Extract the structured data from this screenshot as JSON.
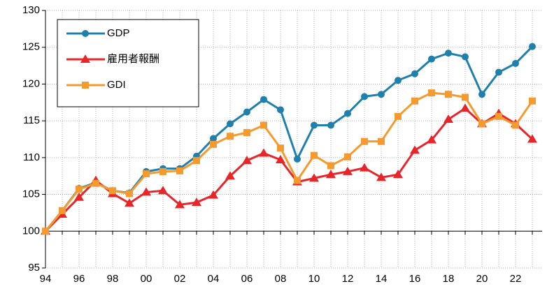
{
  "chart_data": {
    "type": "line",
    "categories": [
      "94",
      null,
      "96",
      null,
      "98",
      null,
      "00",
      null,
      "02",
      null,
      "04",
      null,
      "06",
      null,
      "08",
      null,
      "10",
      null,
      "12",
      null,
      "14",
      null,
      "16",
      null,
      "18",
      null,
      "20",
      null,
      "22",
      null
    ],
    "series": [
      {
        "name": "GDP",
        "color": "#1f80ad",
        "marker": "circle",
        "values": [
          100,
          102.8,
          105.8,
          106.6,
          105.5,
          105.2,
          108.1,
          108.5,
          108.5,
          110.2,
          112.6,
          114.6,
          116.2,
          117.9,
          116.5,
          109.8,
          114.4,
          114.4,
          116.0,
          118.3,
          118.6,
          120.5,
          121.4,
          123.4,
          124.2,
          123.7,
          118.6,
          121.6,
          122.8,
          125.1
        ]
      },
      {
        "name": "雇用者報酬",
        "color": "#e8262a",
        "marker": "triangle",
        "values": [
          100,
          102.3,
          104.6,
          106.9,
          105.1,
          103.8,
          105.3,
          105.5,
          103.6,
          103.9,
          104.9,
          107.5,
          109.6,
          110.6,
          109.7,
          106.7,
          107.2,
          107.7,
          108.1,
          108.6,
          107.3,
          107.7,
          111.0,
          112.4,
          115.2,
          116.7,
          114.6,
          116.0,
          114.6,
          112.5
        ]
      },
      {
        "name": "GDI",
        "color": "#f59a2e",
        "marker": "square",
        "values": [
          100,
          102.8,
          105.7,
          106.5,
          105.5,
          105.1,
          107.8,
          108.1,
          108.2,
          109.6,
          111.8,
          112.9,
          113.4,
          114.4,
          111.3,
          106.9,
          110.3,
          108.9,
          110.1,
          112.2,
          112.2,
          115.6,
          117.7,
          118.8,
          118.6,
          118.2,
          114.6,
          115.6,
          114.4,
          117.7
        ]
      }
    ],
    "ylim": [
      95,
      130
    ],
    "yticks": [
      95,
      100,
      105,
      110,
      115,
      120,
      125,
      130
    ],
    "x_axis_crosses": 100,
    "grid": true,
    "legend": "upper left"
  }
}
